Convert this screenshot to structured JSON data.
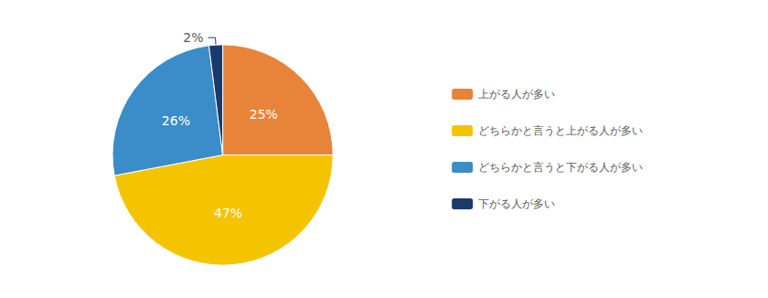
{
  "chart_data": {
    "type": "pie",
    "categories": [
      "上がる人が多い",
      "どちらかと言うと上がる人が多い",
      "どちらかと言うと下がる人が多い",
      "下がる人が多い"
    ],
    "values": [
      25,
      47,
      26,
      2
    ],
    "value_labels": [
      "25%",
      "47%",
      "26%",
      "2%"
    ],
    "colors": [
      "#E8833A",
      "#F5C400",
      "#3A8DC8",
      "#1A3A6B"
    ],
    "data_labels": true,
    "legend": "right"
  }
}
